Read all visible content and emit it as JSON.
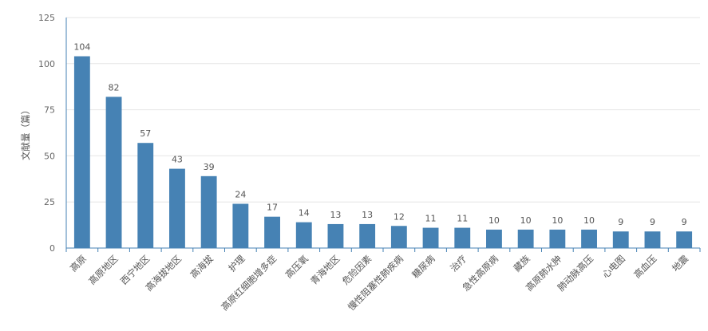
{
  "chart_data": {
    "type": "bar",
    "title": "",
    "xlabel": "",
    "ylabel": "文献量（篇）",
    "ylim": [
      0,
      125
    ],
    "yticks": [
      0,
      25,
      50,
      75,
      100,
      125
    ],
    "grid": true,
    "bar_color": "#4682b4",
    "categories": [
      "高原",
      "高原地区",
      "西宁地区",
      "高海拔地区",
      "高海拔",
      "护理",
      "高原红细胞增多症",
      "高压氧",
      "青海地区",
      "危险因素",
      "慢性阻塞性肺疾病",
      "糖尿病",
      "治疗",
      "急性高原病",
      "藏族",
      "高原肺水肿",
      "肺动脉高压",
      "心电图",
      "高血压",
      "地震"
    ],
    "values": [
      104,
      82,
      57,
      43,
      39,
      24,
      17,
      14,
      13,
      13,
      12,
      11,
      11,
      10,
      10,
      10,
      10,
      9,
      9,
      9
    ]
  }
}
